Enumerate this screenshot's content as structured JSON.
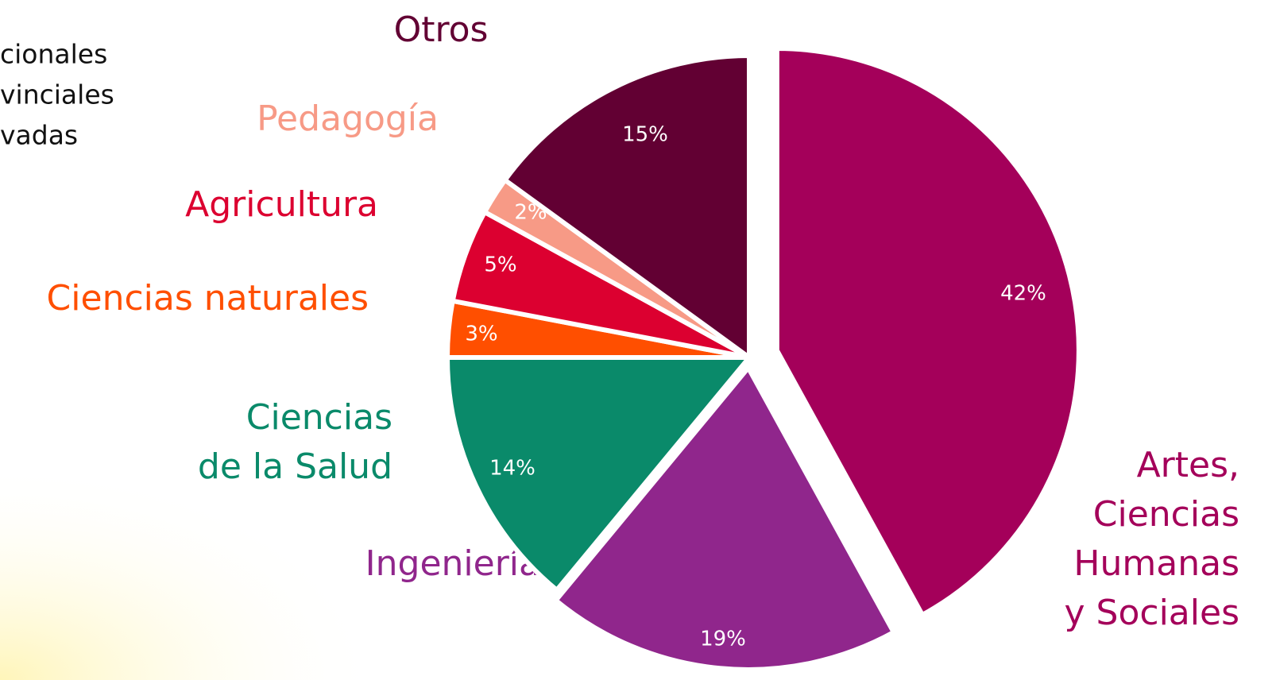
{
  "chart_data": {
    "type": "pie",
    "categories": [
      [
        "Artes,",
        "Ciencias",
        "Humanas",
        "y Sociales"
      ],
      [
        "Ingeniería"
      ],
      [
        "Ciencias",
        "de la Salud"
      ],
      [
        "Ciencias naturales"
      ],
      [
        "Agricultura"
      ],
      [
        "Pedagogía"
      ],
      [
        "Otros"
      ]
    ],
    "values": [
      42,
      19,
      14,
      3,
      5,
      2,
      15
    ],
    "value_labels": [
      "42%",
      "19%",
      "14%",
      "3%",
      "5%",
      "2%",
      "15%"
    ],
    "colors": [
      "#a4005a",
      "#90268c",
      "#0a8a6a",
      "#ff4f00",
      "#dc0030",
      "#f79a86",
      "#620033"
    ],
    "side_legend": [
      "cionales",
      "vinciales",
      "vadas"
    ]
  }
}
